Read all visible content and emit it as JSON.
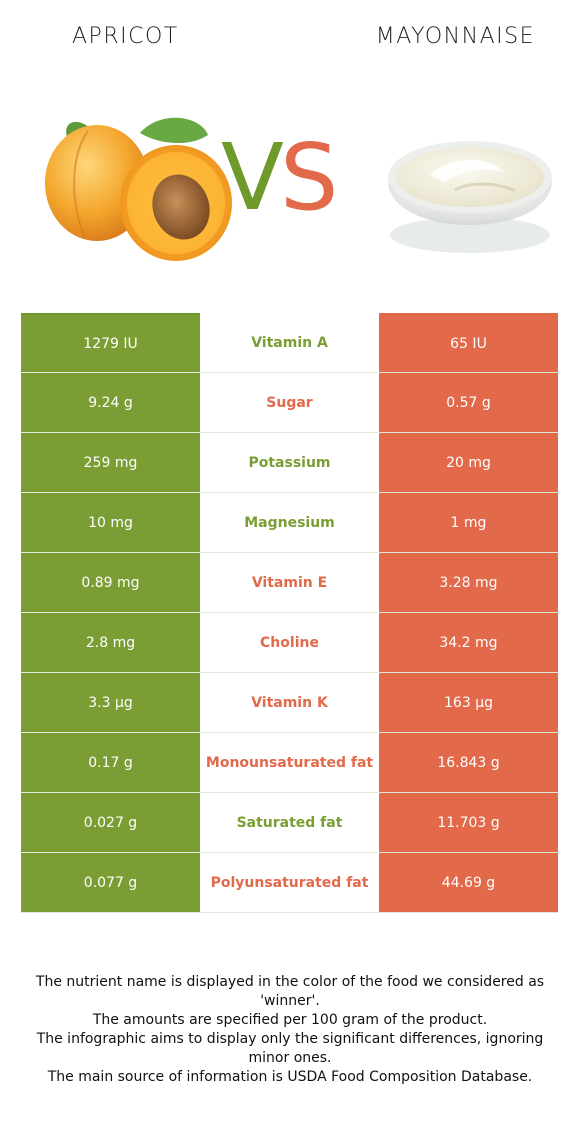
{
  "header": {
    "left_food": "APRICOT",
    "right_food": "MAYONNAISE",
    "vs_v": "V",
    "vs_s": "S"
  },
  "colors": {
    "winner_left": "#7a9e33",
    "winner_right": "#e2694a"
  },
  "rows": [
    {
      "left": "1279 IU",
      "nutrient": "Vitamin A",
      "right": "65 IU",
      "winner": "left"
    },
    {
      "left": "9.24 g",
      "nutrient": "Sugar",
      "right": "0.57 g",
      "winner": "right"
    },
    {
      "left": "259 mg",
      "nutrient": "Potassium",
      "right": "20 mg",
      "winner": "left"
    },
    {
      "left": "10 mg",
      "nutrient": "Magnesium",
      "right": "1 mg",
      "winner": "left"
    },
    {
      "left": "0.89 mg",
      "nutrient": "Vitamin E",
      "right": "3.28 mg",
      "winner": "right"
    },
    {
      "left": "2.8 mg",
      "nutrient": "Choline",
      "right": "34.2 mg",
      "winner": "right"
    },
    {
      "left": "3.3 µg",
      "nutrient": "Vitamin K",
      "right": "163 µg",
      "winner": "right"
    },
    {
      "left": "0.17 g",
      "nutrient": "Monounsaturated fat",
      "right": "16.843 g",
      "winner": "right"
    },
    {
      "left": "0.027 g",
      "nutrient": "Saturated fat",
      "right": "11.703 g",
      "winner": "left"
    },
    {
      "left": "0.077 g",
      "nutrient": "Polyunsaturated fat",
      "right": "44.69 g",
      "winner": "right"
    }
  ],
  "notes": [
    "The nutrient name is displayed in the color of the food we considered as 'winner'.",
    "The amounts are specified per 100 gram of the product.",
    "The infographic aims to display only the significant differences, ignoring minor ones.",
    "The main source of information is USDA Food Composition Database."
  ]
}
